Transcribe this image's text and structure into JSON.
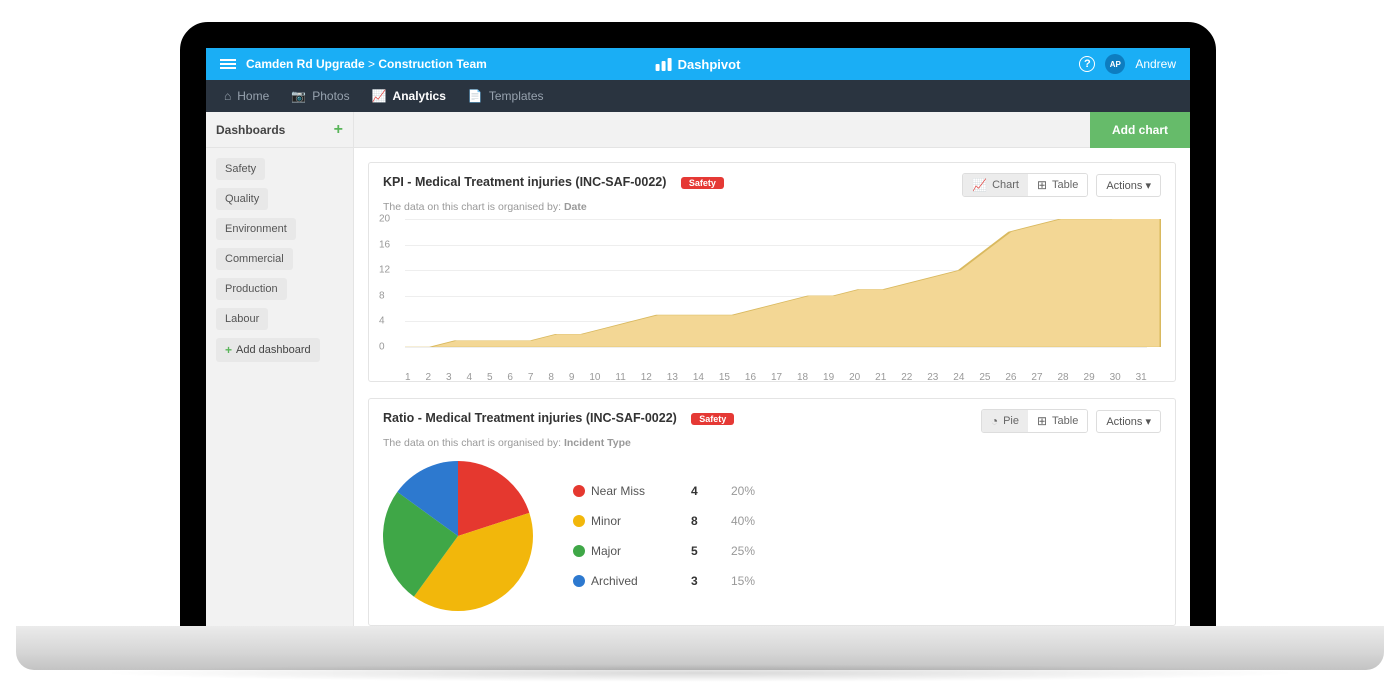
{
  "header": {
    "breadcrumb_a": "Camden Rd Upgrade",
    "breadcrumb_sep": " > ",
    "breadcrumb_b": "Construction Team",
    "app_name": "Dashpivot",
    "user_initials": "AP",
    "user_name": "Andrew"
  },
  "nav": {
    "items": [
      {
        "label": "Home",
        "icon": "⌂"
      },
      {
        "label": "Photos",
        "icon": "📷"
      },
      {
        "label": "Analytics",
        "icon": "📈"
      },
      {
        "label": "Templates",
        "icon": "📄"
      }
    ],
    "active_index": 2
  },
  "sidebar": {
    "title": "Dashboards",
    "items": [
      "Safety",
      "Quality",
      "Environment",
      "Commercial",
      "Production",
      "Labour"
    ],
    "add_label": "Add dashboard"
  },
  "toolbar": {
    "add_chart_label": "Add chart"
  },
  "chart1": {
    "title": "KPI - Medical Treatment injuries (INC-SAF-0022)",
    "badge": "Safety",
    "subtitle_prefix": "The data on this chart is organised by: ",
    "subtitle_value": "Date",
    "toggle_chart": "Chart",
    "toggle_table": "Table",
    "actions_label": "Actions",
    "type": "area",
    "fill_color": "#f3d795",
    "stroke_color": "#d9b95f",
    "grid_color": "#eeeeee",
    "ylim": [
      0,
      20
    ],
    "ytick_step": 4,
    "x_labels": [
      "1",
      "2",
      "3",
      "4",
      "5",
      "6",
      "7",
      "8",
      "9",
      "10",
      "11",
      "12",
      "13",
      "14",
      "15",
      "16",
      "17",
      "18",
      "19",
      "20",
      "21",
      "22",
      "23",
      "24",
      "25",
      "26",
      "27",
      "28",
      "29",
      "30",
      "31"
    ],
    "values": [
      0,
      0,
      1,
      1,
      1,
      1,
      2,
      2,
      3,
      4,
      5,
      5,
      5,
      5,
      6,
      7,
      8,
      8,
      9,
      9,
      10,
      11,
      12,
      15,
      18,
      19,
      20,
      20,
      20,
      21,
      21
    ]
  },
  "chart2": {
    "title": "Ratio - Medical Treatment injuries (INC-SAF-0022)",
    "badge": "Safety",
    "subtitle_prefix": "The data on this chart is organised by: ",
    "subtitle_value": "Incident Type",
    "toggle_chart": "Pie",
    "toggle_table": "Table",
    "actions_label": "Actions",
    "type": "pie",
    "slices": [
      {
        "label": "Near Miss",
        "count": "4",
        "pct": "20%",
        "color": "#e5382f"
      },
      {
        "label": "Minor",
        "count": "8",
        "pct": "40%",
        "color": "#f2b70b"
      },
      {
        "label": "Major",
        "count": "5",
        "pct": "25%",
        "color": "#3fa747"
      },
      {
        "label": "Archived",
        "count": "3",
        "pct": "15%",
        "color": "#2d79cf"
      }
    ]
  }
}
